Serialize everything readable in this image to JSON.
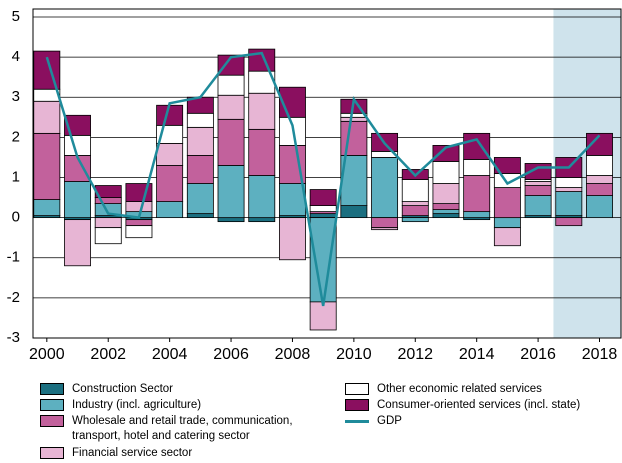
{
  "chart_data": {
    "type": "bar",
    "x": [
      2000,
      2001,
      2002,
      2003,
      2004,
      2005,
      2006,
      2007,
      2008,
      2009,
      2010,
      2011,
      2012,
      2013,
      2014,
      2015,
      2016,
      2017,
      2018
    ],
    "xlim": [
      1999.55,
      2018.7
    ],
    "xticks": [
      2000,
      2002,
      2004,
      2006,
      2008,
      2010,
      2012,
      2014,
      2016,
      2018
    ],
    "ylim": [
      -3,
      5
    ],
    "yticks": [
      -3,
      -2,
      -1,
      0,
      1,
      2,
      3,
      4,
      5
    ],
    "grid": true,
    "shaded_xlim": [
      2016.5,
      2018.7
    ],
    "shade_color": "#cfe3ec",
    "series": [
      {
        "name": "Construction Sector",
        "type": "bar",
        "color": "#1b6f80",
        "values": [
          0.05,
          -0.05,
          0.05,
          -0.05,
          0.0,
          0.1,
          -0.1,
          -0.1,
          0.05,
          0.1,
          0.3,
          0.0,
          0.05,
          0.1,
          -0.05,
          0.0,
          0.05,
          0.05,
          0.0
        ]
      },
      {
        "name": "Industry (incl. agriculture)",
        "type": "bar",
        "color": "#5db0c0",
        "values": [
          0.4,
          0.9,
          0.3,
          0.15,
          0.4,
          0.75,
          1.3,
          1.05,
          0.8,
          -2.1,
          1.25,
          1.5,
          -0.1,
          0.1,
          0.15,
          -0.25,
          0.5,
          0.6,
          0.55
        ]
      },
      {
        "name": "Wholesale and retail trade, communication, transport, hotel and catering sector",
        "type": "bar",
        "color": "#c2619c",
        "values": [
          1.65,
          0.65,
          0.15,
          -0.15,
          0.9,
          0.7,
          1.15,
          1.15,
          0.95,
          0.05,
          0.85,
          -0.25,
          0.25,
          0.15,
          0.9,
          0.75,
          0.25,
          -0.2,
          0.3
        ]
      },
      {
        "name": "Financial service sector",
        "type": "bar",
        "color": "#e7b5d4",
        "values": [
          0.8,
          -1.15,
          -0.25,
          0.25,
          0.55,
          0.7,
          0.6,
          0.9,
          -1.05,
          -0.7,
          0.1,
          -0.05,
          0.1,
          0.5,
          0.0,
          -0.45,
          0.1,
          0.1,
          0.2
        ]
      },
      {
        "name": "Other economic related services",
        "type": "bar",
        "color": "#ffffff",
        "values": [
          0.3,
          0.5,
          -0.4,
          -0.3,
          0.45,
          0.35,
          0.5,
          0.55,
          0.7,
          0.15,
          0.1,
          0.15,
          0.55,
          0.55,
          0.4,
          0.35,
          0.05,
          0.25,
          0.5
        ]
      },
      {
        "name": "Consumer-oriented services (incl. state)",
        "type": "bar",
        "color": "#8a0f5f",
        "values": [
          0.95,
          0.5,
          0.3,
          0.45,
          0.5,
          0.4,
          0.5,
          0.55,
          0.75,
          0.4,
          0.35,
          0.45,
          0.25,
          0.4,
          0.65,
          0.4,
          0.4,
          0.5,
          0.55
        ]
      },
      {
        "name": "GDP",
        "type": "line",
        "color": "#1f8b9b",
        "values": [
          4.0,
          1.5,
          0.1,
          0.0,
          2.85,
          3.0,
          4.0,
          4.1,
          2.3,
          -2.2,
          2.95,
          1.85,
          1.05,
          1.75,
          1.95,
          0.85,
          1.25,
          1.25,
          2.05
        ]
      }
    ]
  }
}
